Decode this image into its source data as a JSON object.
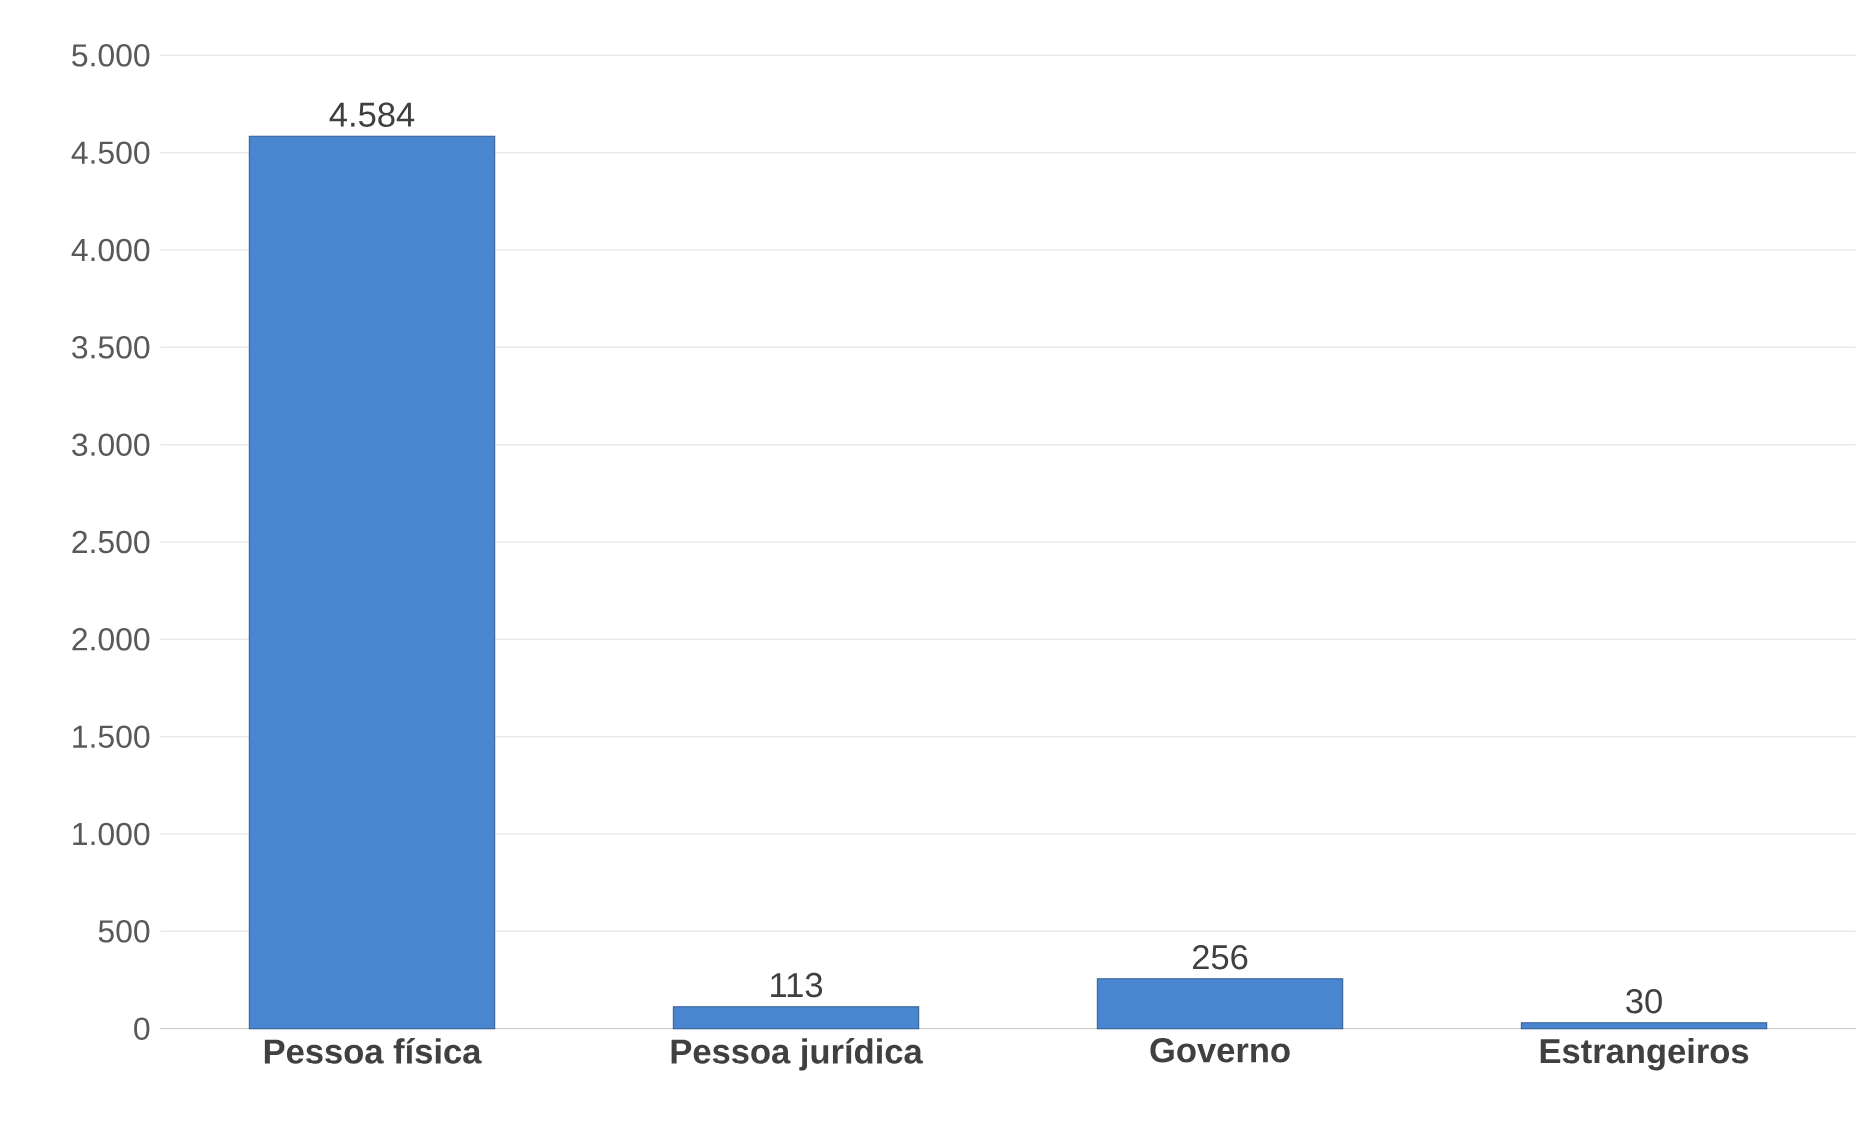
{
  "chart_data": {
    "type": "bar",
    "categories": [
      "Pessoa física",
      "Pessoa jurídica",
      "Governo",
      "Estrangeiros"
    ],
    "values": [
      4584,
      113,
      256,
      30
    ],
    "value_labels": [
      "4.584",
      "113",
      "256",
      "30"
    ],
    "color": "#4a86d0",
    "ylim": [
      0,
      5000
    ],
    "yticks": [
      0,
      500,
      {
        "value": 1000,
        "label": "1.000"
      },
      {
        "value": 1500,
        "label": "1.500"
      },
      {
        "value": 2000,
        "label": "2.000"
      },
      {
        "value": 2500,
        "label": "2.500"
      },
      {
        "value": 3000,
        "label": "3.000"
      },
      {
        "value": 3500,
        "label": "3.500"
      },
      {
        "value": 4000,
        "label": "4.000"
      },
      {
        "value": 4500,
        "label": "4.500"
      },
      {
        "value": 5000,
        "label": "5.000"
      }
    ],
    "grid": "y"
  }
}
